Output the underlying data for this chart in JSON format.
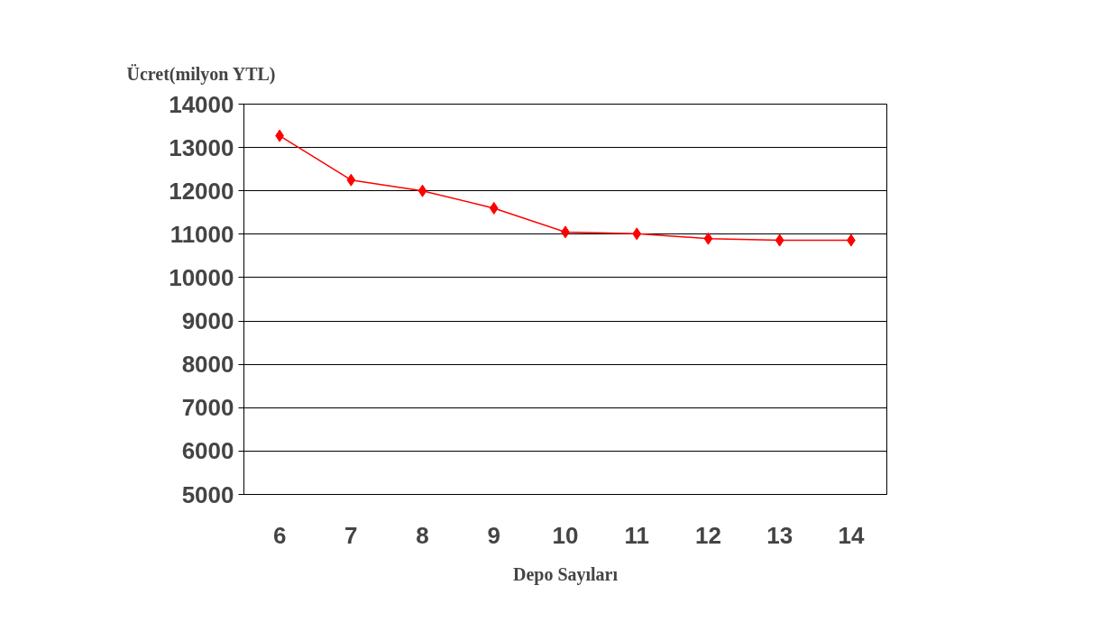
{
  "chart_data": {
    "type": "line",
    "ylabel": "Ücret(milyon YTL)",
    "xlabel": "Depo Sayıları",
    "categories": [
      "6",
      "7",
      "8",
      "9",
      "10",
      "11",
      "12",
      "13",
      "14"
    ],
    "series": [
      {
        "color": "#ff0000",
        "values": [
          13270,
          12250,
          12000,
          11600,
          11050,
          11010,
          10900,
          10860,
          10860
        ]
      }
    ],
    "ylim": [
      5000,
      14000
    ],
    "yticks": [
      5000,
      6000,
      7000,
      8000,
      9000,
      10000,
      11000,
      12000,
      13000,
      14000
    ],
    "grid": "y",
    "marker": "diamond",
    "line_style": "solid"
  }
}
